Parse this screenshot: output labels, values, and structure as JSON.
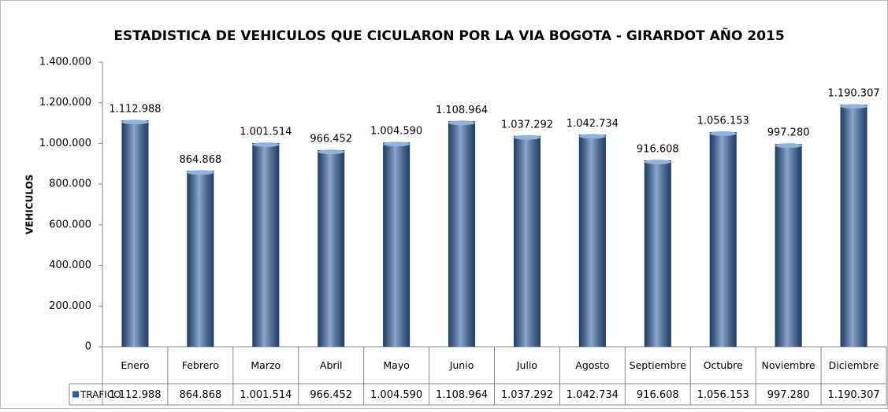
{
  "chart_data": {
    "type": "bar",
    "title": "ESTADISTICA DE VEHICULOS QUE CICULARON  POR LA VIA BOGOTA - GIRARDOT AÑO 2015",
    "y_label": "VEHICULOS",
    "categories": [
      "Enero",
      "Febrero",
      "Marzo",
      "Abril",
      "Mayo",
      "Junio",
      "Julio",
      "Agosto",
      "Septiembre",
      "Octubre",
      "Noviembre",
      "Diciembre"
    ],
    "series": [
      {
        "name": "TRAFICO",
        "color": "#2f5f9f",
        "values": [
          1112988,
          864868,
          1001514,
          966452,
          1004590,
          1108964,
          1037292,
          1042734,
          916608,
          1056153,
          997280,
          1190307
        ],
        "value_labels": [
          "1.112.988",
          "864.868",
          "1.001.514",
          "966.452",
          "1.004.590",
          "1.108.964",
          "1.037.292",
          "1.042.734",
          "916.608",
          "1.056.153",
          "997.280",
          "1.190.307"
        ]
      }
    ],
    "ylim": [
      0,
      1400000
    ],
    "yticks": [
      0,
      {
        "value": 200000,
        "label": "200.000"
      },
      {
        "value": 400000,
        "label": "400.000"
      },
      {
        "value": 600000,
        "label": "600.000"
      },
      {
        "value": 800000,
        "label": "800.000"
      },
      {
        "value": 1000000,
        "label": "1.000.000"
      },
      {
        "value": 1200000,
        "label": "1.200.000"
      },
      {
        "value": 1400000,
        "label": "1.400.000"
      }
    ],
    "grid": false,
    "data_table": true
  }
}
